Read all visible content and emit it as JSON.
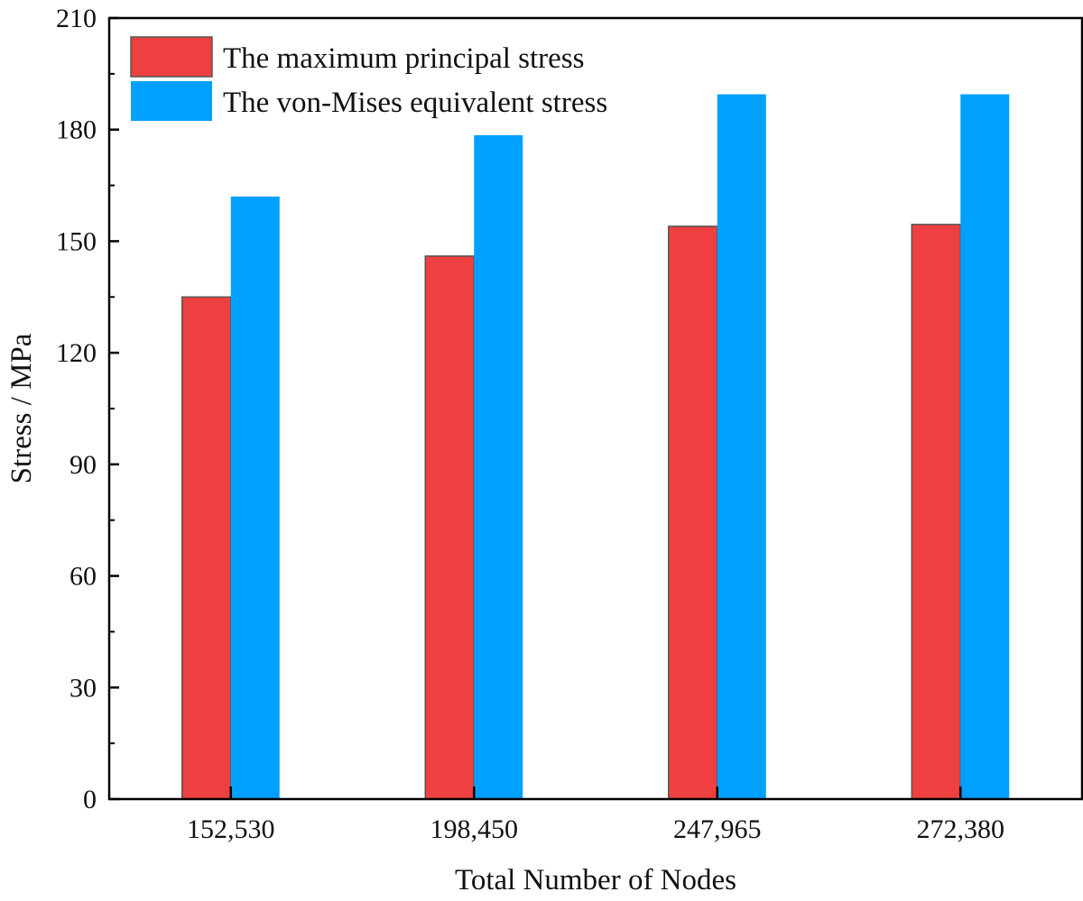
{
  "chart_data": {
    "type": "bar",
    "xlabel": "Total Number of Nodes",
    "ylabel": "Stress / MPa",
    "categories": [
      "152,530",
      "198,450",
      "247,965",
      "272,380"
    ],
    "ylim": [
      0,
      210
    ],
    "yticks": [
      0,
      30,
      60,
      90,
      120,
      150,
      180,
      210
    ],
    "grid": false,
    "legend_position": "top-left",
    "series": [
      {
        "name": "The maximum principal stress",
        "color": "#EE4040",
        "values": [
          135,
          146,
          154,
          154.5
        ]
      },
      {
        "name": "The von-Mises equivalent stress",
        "color": "#00A0FF",
        "values": [
          162,
          178.5,
          189.5,
          189.5
        ]
      }
    ]
  }
}
